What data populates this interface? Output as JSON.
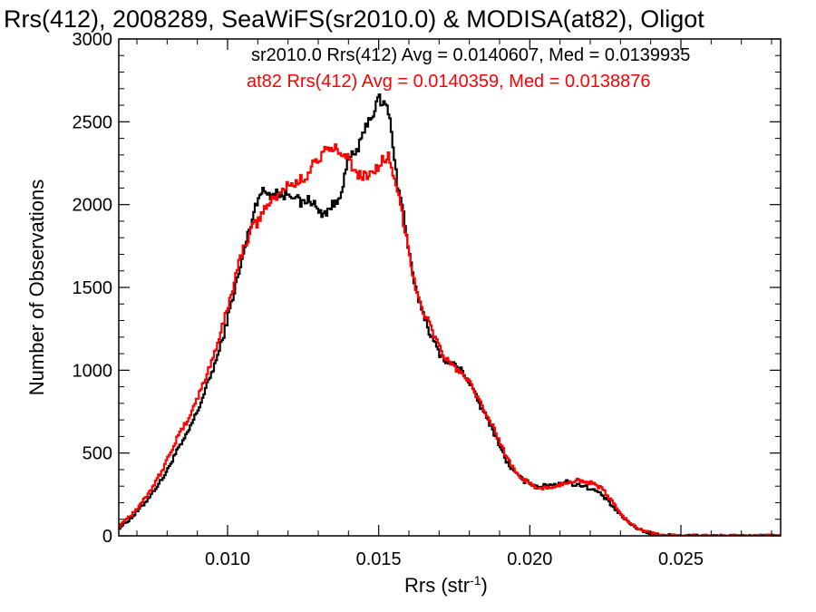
{
  "chart_data": {
    "type": "line",
    "title": "Rrs(412), 2008289, SeaWiFS(sr2010.0) & MODISA(at82), Oligot",
    "xlabel": "Rrs (str",
    "xlabel_sup": "-1",
    "xlabel_end": ")",
    "ylabel": "Number of Observations",
    "xlim": [
      0.0064,
      0.0283
    ],
    "ylim": [
      0,
      3000
    ],
    "xticks": [
      0.01,
      0.015,
      0.02,
      0.025
    ],
    "xtick_labels": [
      "0.010",
      "0.015",
      "0.020",
      "0.025"
    ],
    "yticks": [
      0,
      500,
      1000,
      1500,
      2000,
      2500,
      3000
    ],
    "ytick_labels": [
      "0",
      "500",
      "1000",
      "1500",
      "2000",
      "2500",
      "3000"
    ],
    "grid": false,
    "legend_position": "top-right",
    "series": [
      {
        "name": "sr2010.0 Rrs(412) Avg = 0.0140607, Med = 0.0139935",
        "color": "#000000",
        "x": [
          0.0064,
          0.0066,
          0.0068,
          0.007,
          0.0072,
          0.0074,
          0.0076,
          0.0078,
          0.008,
          0.0082,
          0.0084,
          0.0086,
          0.0088,
          0.009,
          0.0092,
          0.0094,
          0.0096,
          0.0098,
          0.01,
          0.0102,
          0.0104,
          0.0106,
          0.0108,
          0.011,
          0.0112,
          0.0114,
          0.0116,
          0.0118,
          0.012,
          0.0122,
          0.0124,
          0.0126,
          0.0128,
          0.013,
          0.0132,
          0.0134,
          0.0136,
          0.0138,
          0.014,
          0.0142,
          0.0144,
          0.0146,
          0.0148,
          0.015,
          0.0151,
          0.0152,
          0.0153,
          0.0154,
          0.0156,
          0.0158,
          0.016,
          0.0162,
          0.0164,
          0.0166,
          0.0168,
          0.017,
          0.0172,
          0.0174,
          0.0176,
          0.0178,
          0.018,
          0.0182,
          0.0184,
          0.0186,
          0.0188,
          0.019,
          0.0192,
          0.0194,
          0.0196,
          0.0198,
          0.02,
          0.0202,
          0.0204,
          0.0206,
          0.0208,
          0.021,
          0.0212,
          0.0214,
          0.0216,
          0.0218,
          0.022,
          0.0222,
          0.0224,
          0.0226,
          0.0228,
          0.023,
          0.0232,
          0.0234,
          0.0236,
          0.0238,
          0.024,
          0.0242,
          0.0245,
          0.025,
          0.0255,
          0.026,
          0.027,
          0.028,
          0.0283
        ],
        "y": [
          50,
          80,
          110,
          150,
          190,
          240,
          290,
          340,
          400,
          480,
          540,
          600,
          680,
          760,
          860,
          960,
          1060,
          1180,
          1330,
          1480,
          1620,
          1780,
          1920,
          2060,
          2080,
          2060,
          2080,
          2050,
          2070,
          2060,
          2000,
          2030,
          2020,
          1950,
          1950,
          1990,
          2010,
          2130,
          2280,
          2310,
          2380,
          2500,
          2550,
          2650,
          2590,
          2620,
          2550,
          2450,
          2120,
          1950,
          1680,
          1480,
          1380,
          1260,
          1170,
          1100,
          1060,
          1040,
          1020,
          980,
          920,
          840,
          760,
          700,
          620,
          540,
          450,
          400,
          360,
          330,
          320,
          300,
          300,
          310,
          310,
          320,
          330,
          310,
          310,
          300,
          280,
          270,
          240,
          200,
          160,
          120,
          90,
          60,
          40,
          25,
          15,
          8,
          4,
          2,
          1,
          0,
          0,
          0,
          0
        ]
      },
      {
        "name": "at82 Rrs(412) Avg = 0.0140359, Med = 0.0138876",
        "color": "#ff0000",
        "x": [
          0.0064,
          0.0066,
          0.0068,
          0.007,
          0.0072,
          0.0074,
          0.0076,
          0.0078,
          0.008,
          0.0082,
          0.0084,
          0.0086,
          0.0088,
          0.009,
          0.0092,
          0.0094,
          0.0096,
          0.0098,
          0.01,
          0.0102,
          0.0104,
          0.0106,
          0.0108,
          0.011,
          0.0112,
          0.0114,
          0.0116,
          0.0118,
          0.012,
          0.0122,
          0.0124,
          0.0126,
          0.0128,
          0.013,
          0.0132,
          0.0134,
          0.0136,
          0.0138,
          0.014,
          0.0142,
          0.0144,
          0.0146,
          0.0148,
          0.015,
          0.0151,
          0.0152,
          0.0153,
          0.0154,
          0.0156,
          0.0158,
          0.016,
          0.0162,
          0.0164,
          0.0166,
          0.0168,
          0.017,
          0.0172,
          0.0174,
          0.0176,
          0.0178,
          0.018,
          0.0182,
          0.0184,
          0.0186,
          0.0188,
          0.019,
          0.0192,
          0.0194,
          0.0196,
          0.0198,
          0.02,
          0.0202,
          0.0204,
          0.0206,
          0.0208,
          0.021,
          0.0212,
          0.0214,
          0.0216,
          0.0218,
          0.022,
          0.0222,
          0.0224,
          0.0226,
          0.0228,
          0.023,
          0.0232,
          0.0234,
          0.0236,
          0.0238,
          0.024,
          0.0242,
          0.0245,
          0.025,
          0.0255,
          0.026,
          0.027,
          0.028,
          0.0283
        ],
        "y": [
          60,
          100,
          130,
          170,
          220,
          270,
          330,
          390,
          470,
          550,
          620,
          680,
          760,
          840,
          930,
          1030,
          1140,
          1260,
          1390,
          1540,
          1680,
          1780,
          1860,
          1900,
          1980,
          2010,
          2050,
          2080,
          2130,
          2120,
          2150,
          2180,
          2250,
          2270,
          2320,
          2330,
          2340,
          2320,
          2280,
          2190,
          2170,
          2180,
          2200,
          2240,
          2270,
          2230,
          2290,
          2200,
          2080,
          1900,
          1700,
          1500,
          1380,
          1300,
          1220,
          1130,
          1070,
          1030,
          1000,
          970,
          920,
          840,
          780,
          720,
          640,
          560,
          480,
          420,
          370,
          340,
          310,
          290,
          290,
          290,
          290,
          310,
          320,
          330,
          340,
          330,
          320,
          300,
          280,
          230,
          180,
          130,
          90,
          60,
          40,
          25,
          15,
          8,
          4,
          2,
          1,
          0,
          0,
          0,
          0
        ]
      }
    ]
  }
}
